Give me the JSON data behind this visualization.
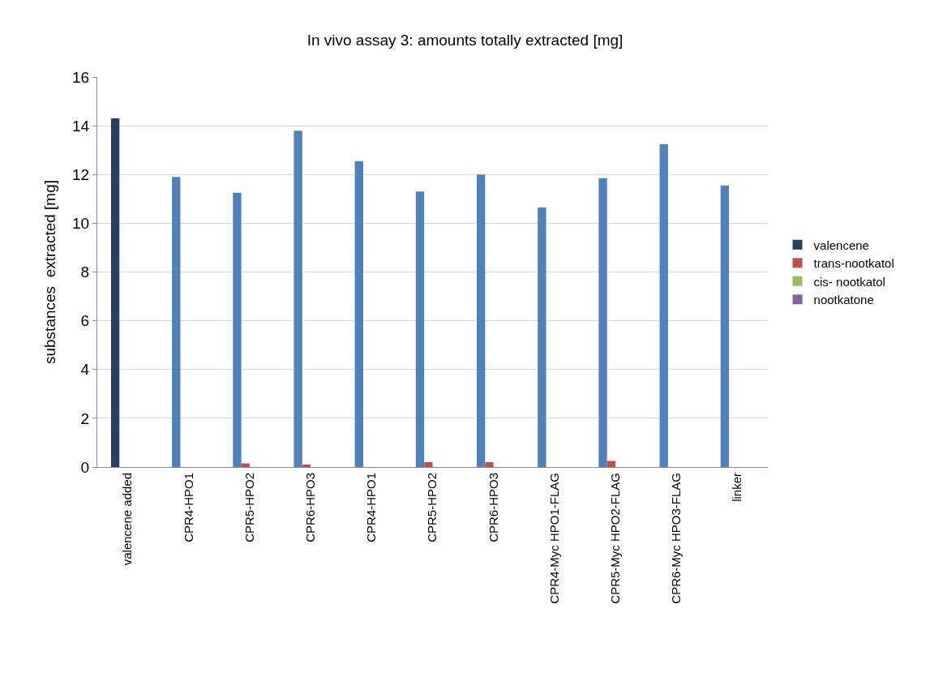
{
  "chart_data": {
    "type": "bar",
    "title": "In vivo assay 3: amounts totally extracted [mg]",
    "ylabel": "substances  extracted [mg]",
    "categories": [
      "valencene added",
      "CPR4-HPO1",
      "CPR5-HPO2",
      "CPR6-HPO3",
      "CPR4-HPO1",
      "CPR5-HPO2",
      "CPR6-HPO3",
      "CPR4-Myc HPO1-FLAG",
      "CPR5-Myc HPO2-FLAG",
      "CPR6-Myc HPO3-FLAG",
      "linker"
    ],
    "series": [
      {
        "name": "valencene",
        "color": "#4f81bd",
        "colors": [
          "#254061",
          "#4f81bd",
          "#4f81bd",
          "#4f81bd",
          "#4f81bd",
          "#4f81bd",
          "#4f81bd",
          "#4f81bd",
          "#4f81bd",
          "#4f81bd",
          "#4f81bd"
        ],
        "values": [
          14.3,
          11.9,
          11.25,
          13.8,
          12.55,
          11.3,
          12.0,
          10.65,
          11.85,
          13.25,
          11.55
        ]
      },
      {
        "name": "trans-nootkatol",
        "color": "#c0504d",
        "values": [
          0,
          0,
          0.15,
          0.1,
          0,
          0.2,
          0.2,
          0,
          0.25,
          0,
          0
        ]
      },
      {
        "name": "cis- nootkatol",
        "color": "#9bbb59",
        "values": [
          0,
          0,
          0,
          0,
          0,
          0,
          0,
          0,
          0,
          0,
          0
        ]
      },
      {
        "name": "nootkatone",
        "color": "#8064a2",
        "values": [
          0,
          0,
          0,
          0,
          0,
          0,
          0,
          0,
          0,
          0,
          0
        ]
      }
    ],
    "ylim": [
      0,
      16
    ],
    "yticks": [
      0,
      2,
      4,
      6,
      8,
      10,
      12,
      14,
      16
    ],
    "grid": "y",
    "legend": "right"
  }
}
